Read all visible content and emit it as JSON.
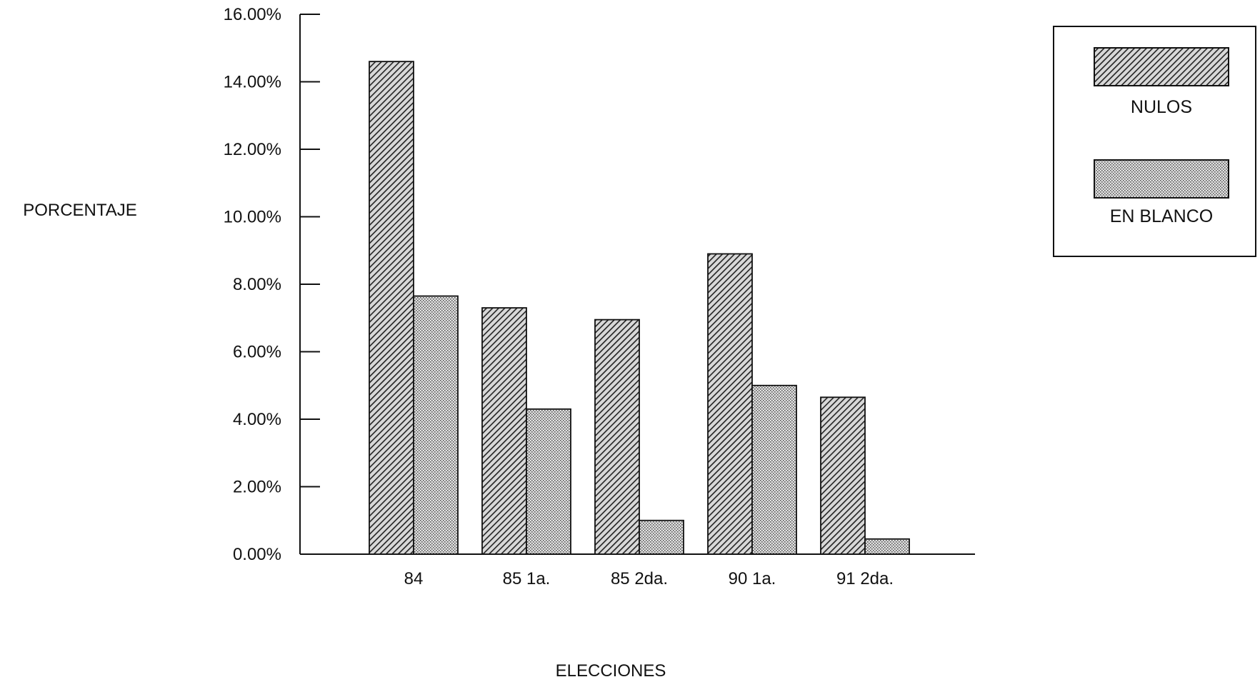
{
  "chart_data": {
    "type": "bar",
    "title": "",
    "xlabel": "ELECCIONES",
    "ylabel": "PORCENTAJE",
    "categories": [
      "84",
      "85 1a.",
      "85 2da.",
      "90 1a.",
      "91  2da."
    ],
    "series": [
      {
        "name": "NULOS",
        "values": [
          14.6,
          7.3,
          6.95,
          8.9,
          4.65
        ],
        "pattern": "diagonal-hatch",
        "color": "#3a3a3a"
      },
      {
        "name": "EN BLANCO",
        "values": [
          7.65,
          4.3,
          1.0,
          5.0,
          0.45
        ],
        "pattern": "fine-stipple",
        "color": "#9a9a9a"
      }
    ],
    "ylim": [
      0,
      16
    ],
    "yticks": [
      0,
      2,
      4,
      6,
      8,
      10,
      12,
      14,
      16
    ],
    "ytick_labels": [
      "0.00%",
      "2.00%",
      "4.00%",
      "6.00%",
      "8.00%",
      "10.00%",
      "12.00%",
      "14.00%",
      "16.00%"
    ],
    "grid": false,
    "legend_position": "top-right"
  }
}
